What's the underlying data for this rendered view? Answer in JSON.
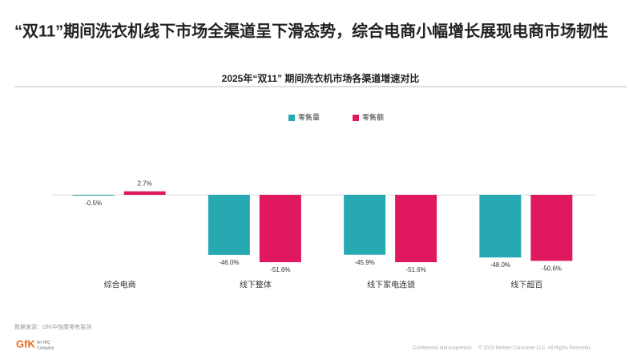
{
  "chart_data": {
    "type": "bar",
    "title": "2025年“双11” 期间洗衣机市场各渠道增速对比",
    "categories": [
      "综合电商",
      "线下整体",
      "线下家电连锁",
      "线下超百"
    ],
    "series": [
      {
        "name": "零售量",
        "color": "#26a9b1",
        "values": [
          -0.5,
          -46.0,
          -45.9,
          -48.0
        ],
        "value_labels": [
          "-0.5%",
          "-46.0%",
          "-45.9%",
          "-48.0%"
        ]
      },
      {
        "name": "零售额",
        "color": "#e0185f",
        "values": [
          2.7,
          -51.6,
          -51.6,
          -50.6
        ],
        "value_labels": [
          "2.7%",
          "-51.6%",
          "-51.6%",
          "-50.6%"
        ]
      }
    ],
    "legend": "top"
  },
  "page": {
    "headline": "“双11”期间洗衣机线下市场全渠道呈下滑态势，综合电商小幅增长展现电商市场韧性",
    "source": "数据来源：GfK中怡康零售监测",
    "logo": "GfK",
    "logo_sub1": "An NIQ",
    "logo_sub2": "Company",
    "confidential": "Confidential and proprietary",
    "copyright": "© 2025 Nielsen Consumer LLC. All Rights Reserved."
  }
}
